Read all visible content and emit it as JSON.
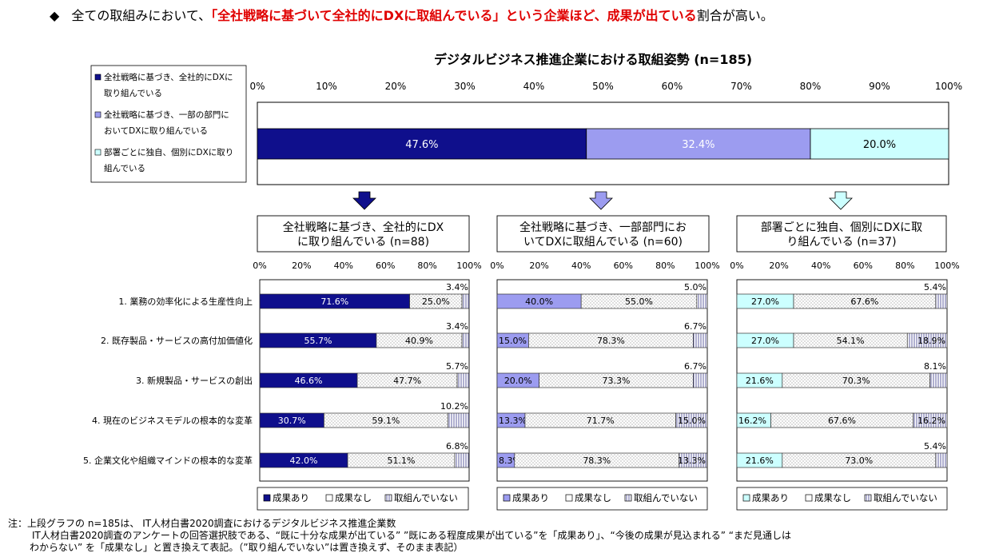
{
  "headline": {
    "bullet": "◆",
    "pre": "全ての取組みにおいて、",
    "highlight": "「全社戦略に基づいて全社的にDXに取組んでいる」という企業ほど、成果が出ている",
    "post": "割合が高い。"
  },
  "colors": {
    "navy": "#0f0f8c",
    "lavender": "#9c9cf0",
    "aqua": "#ccffff",
    "dotted_bg": "#ffffff",
    "headline_red": "#e00000"
  },
  "chart_data": [
    {
      "type": "bar",
      "orientation": "horizontal-stacked",
      "title": "デジタルビジネス推進企業における取組姿勢 (n=185)",
      "xlim": [
        0,
        100
      ],
      "tick_labels": [
        "0%",
        "10%",
        "20%",
        "30%",
        "40%",
        "50%",
        "60%",
        "70%",
        "80%",
        "90%",
        "100%"
      ],
      "legend": [
        {
          "line1": "全社戦略に基づき、全社的にDXに",
          "line2": "取り組んでいる"
        },
        {
          "line1": "全社戦略に基づき、一部の部門に",
          "line2": "おいてDXに取り組んでいる"
        },
        {
          "line1": "部署ごとに独自、個別にDXに取り",
          "line2": "組んでいる"
        }
      ],
      "legend_placement": "left",
      "series": [
        {
          "name": "全社戦略に基づき、全社的にDXに取り組んでいる",
          "value": 47.6,
          "label": "47.6%"
        },
        {
          "name": "全社戦略に基づき、一部の部門においてDXに取り組んでいる",
          "value": 32.4,
          "label": "32.4%"
        },
        {
          "name": "部署ごとに独自、個別にDXに取り組んでいる",
          "value": 20.0,
          "label": "20.0%"
        }
      ]
    },
    {
      "type": "bar",
      "orientation": "horizontal-stacked-100",
      "categories": [
        "1. 業務の効率化による生産性向上",
        "2. 既存製品・サービスの高付加価値化",
        "3. 新規製品・サービスの創出",
        "4. 現在のビジネスモデルの根本的な変革",
        "5. 企業文化や組織マインドの根本的な変革"
      ],
      "tick_labels": [
        "0%",
        "20%",
        "40%",
        "60%",
        "80%",
        "100%"
      ],
      "legend": [
        "成果あり",
        "成果なし",
        "取組んでいない"
      ],
      "legend_placement": "bottom",
      "panels": [
        {
          "title_line1": "全社戦略に基づき、全社的にDX",
          "title_line2": "に取り組んでいる (n=88)",
          "values": [
            [
              71.6,
              25.0,
              3.4
            ],
            [
              55.7,
              40.9,
              3.4
            ],
            [
              46.6,
              47.7,
              5.7
            ],
            [
              30.7,
              59.1,
              10.2
            ],
            [
              42.0,
              51.1,
              6.8
            ]
          ],
          "labels": [
            [
              "71.6%",
              "25.0%",
              "3.4%"
            ],
            [
              "55.7%",
              "40.9%",
              "3.4%"
            ],
            [
              "46.6%",
              "47.7%",
              "5.7%"
            ],
            [
              "30.7%",
              "59.1%",
              "10.2%"
            ],
            [
              "42.0%",
              "51.1%",
              "6.8%"
            ]
          ]
        },
        {
          "title_line1": "全社戦略に基づき、一部部門にお",
          "title_line2": "いてDXに取組んでいる (n=60)",
          "values": [
            [
              40.0,
              55.0,
              5.0
            ],
            [
              15.0,
              78.3,
              6.7
            ],
            [
              20.0,
              73.3,
              6.7
            ],
            [
              13.3,
              71.7,
              15.0
            ],
            [
              8.3,
              78.3,
              13.3
            ]
          ],
          "labels": [
            [
              "40.0%",
              "55.0%",
              "5.0%"
            ],
            [
              "15.0%",
              "78.3%",
              "6.7%"
            ],
            [
              "20.0%",
              "73.3%",
              "6.7%"
            ],
            [
              "13.3%",
              "71.7%",
              "15.0%"
            ],
            [
              "8.3%",
              "78.3%",
              "13.3%"
            ]
          ]
        },
        {
          "title_line1": "部署ごとに独自、個別にDXに取",
          "title_line2": "り組んでいる (n=37)",
          "values": [
            [
              27.0,
              67.6,
              5.4
            ],
            [
              27.0,
              54.1,
              18.9
            ],
            [
              21.6,
              70.3,
              8.1
            ],
            [
              16.2,
              67.6,
              16.2
            ],
            [
              21.6,
              73.0,
              5.4
            ]
          ],
          "labels": [
            [
              "27.0%",
              "67.6%",
              "5.4%"
            ],
            [
              "27.0%",
              "54.1%",
              "18.9%"
            ],
            [
              "21.6%",
              "70.3%",
              "8.1%"
            ],
            [
              "16.2%",
              "67.6%",
              "16.2%"
            ],
            [
              "21.6%",
              "73.0%",
              "5.4%"
            ]
          ]
        }
      ]
    }
  ],
  "note": {
    "line1": "注：上段グラフの n=185は、 IT人材白書2020調査におけるデジタルビジネス推進企業数",
    "line2": "IT人材白書2020調査のアンケートの回答選択肢である、“既に十分な成果が出ている” ”既にある程度成果が出ている”を「成果あり」、“今後の成果が見込まれる” “まだ見通しは",
    "line3": "わからない” を「成果なし」と置き換えて表記。（”取り組んでいない”は置き換えず、そのまま表記）"
  }
}
